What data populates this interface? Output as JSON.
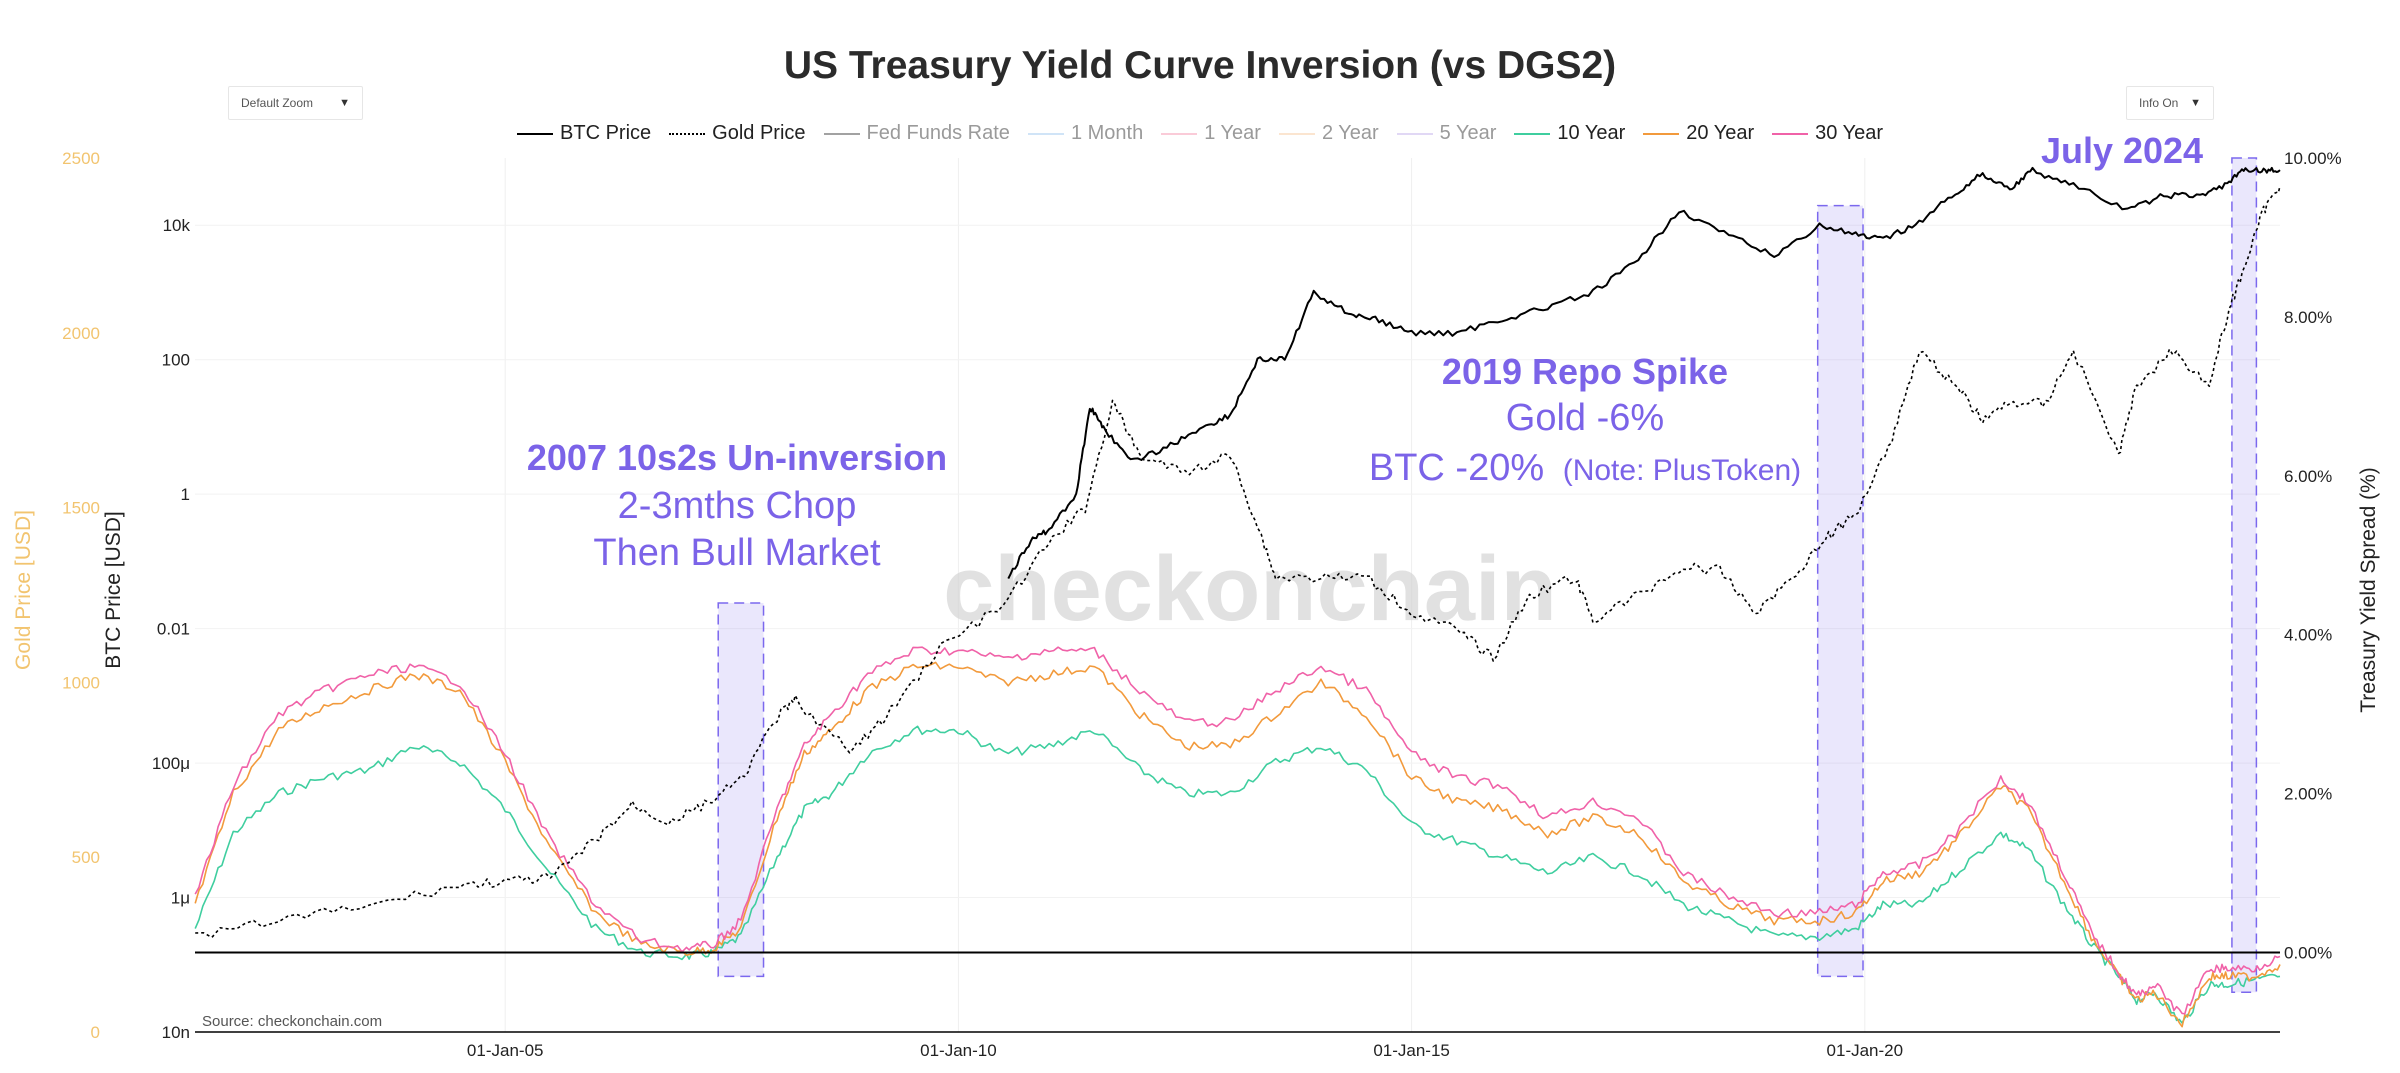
{
  "header": {
    "title": "US Treasury Yield Curve Inversion (vs DGS2)",
    "zoom_select": "Default Zoom",
    "info_select": "Info On"
  },
  "colors": {
    "btc": "#000000",
    "gold": "#000000",
    "fed": "#555555",
    "m1": "#a9cdf0",
    "y1": "#f6a0b8",
    "y2": "#f7cfa9",
    "y5": "#c9b8ec",
    "y10": "#3fce9f",
    "y20": "#f29a3c",
    "y30": "#f062a8",
    "highlight": "#7b68ee",
    "gold_axis": "#f2c46f"
  },
  "chart_data": {
    "type": "line",
    "title": "US Treasury Yield Curve Inversion (vs DGS2)",
    "source": "Source: checkonchain.com",
    "watermark": "checkonchain",
    "x_axis": {
      "range": [
        "2001-07-31",
        "2024-07-31"
      ],
      "ticks": [
        "01-Jan-05",
        "01-Jan-10",
        "01-Jan-15",
        "01-Jan-20"
      ]
    },
    "y_btc": {
      "label": "BTC Price [USD]",
      "scale": "log",
      "range": [
        1e-08,
        100000
      ],
      "ticks": [
        "10n",
        "1μ",
        "100μ",
        "0.01",
        "1",
        "100",
        "10k"
      ]
    },
    "y_gold": {
      "label": "Gold Price [USD]",
      "range": [
        0,
        2500
      ],
      "ticks": [
        "0",
        "500",
        "1000",
        "1500",
        "2000",
        "2500"
      ]
    },
    "y_spread": {
      "label": "Treasury Yield Spread (%)",
      "range": [
        -1.0,
        10.0
      ],
      "ticks": [
        "0.00%",
        "2.00%",
        "4.00%",
        "6.00%",
        "8.00%",
        "10.00%"
      ]
    },
    "legend": [
      {
        "name": "BTC Price",
        "key": "btc",
        "dash": "solid",
        "muted": false
      },
      {
        "name": "Gold Price",
        "key": "gold",
        "dash": "dot",
        "muted": false
      },
      {
        "name": "Fed Funds Rate",
        "key": "fed",
        "dash": "solid",
        "muted": true
      },
      {
        "name": "1 Month",
        "key": "m1",
        "dash": "solid",
        "muted": true
      },
      {
        "name": "1 Year",
        "key": "y1",
        "dash": "solid",
        "muted": true
      },
      {
        "name": "2 Year",
        "key": "y2",
        "dash": "solid",
        "muted": true
      },
      {
        "name": "5 Year",
        "key": "y5",
        "dash": "solid",
        "muted": true
      },
      {
        "name": "10 Year",
        "key": "y10",
        "dash": "solid",
        "muted": false
      },
      {
        "name": "20 Year",
        "key": "y20",
        "dash": "solid",
        "muted": false
      },
      {
        "name": "30 Year",
        "key": "y30",
        "dash": "solid",
        "muted": false
      }
    ],
    "series": [
      {
        "name": "10 Year",
        "key": "y10",
        "axis": "spread",
        "x": [
          2001.58,
          2002.0,
          2002.5,
          2003.0,
          2003.5,
          2004.0,
          2004.5,
          2005.0,
          2005.5,
          2006.0,
          2006.5,
          2007.0,
          2007.3,
          2007.6,
          2008.0,
          2008.3,
          2008.6,
          2009.0,
          2009.5,
          2010.0,
          2010.5,
          2011.0,
          2011.5,
          2012.0,
          2012.5,
          2013.0,
          2013.5,
          2014.0,
          2014.5,
          2015.0,
          2015.5,
          2016.0,
          2016.5,
          2017.0,
          2017.5,
          2018.0,
          2018.5,
          2019.0,
          2019.5,
          2019.9,
          2020.2,
          2020.6,
          2021.0,
          2021.5,
          2021.8,
          2022.2,
          2022.5,
          2022.8,
          2023.0,
          2023.2,
          2023.5,
          2023.8,
          2024.0,
          2024.3,
          2024.58
        ],
        "values": [
          0.3,
          1.5,
          2.0,
          2.2,
          2.3,
          2.6,
          2.4,
          1.8,
          1.0,
          0.3,
          0.0,
          -0.05,
          0.0,
          0.2,
          1.2,
          1.8,
          2.0,
          2.5,
          2.8,
          2.8,
          2.5,
          2.6,
          2.8,
          2.3,
          2.0,
          2.0,
          2.4,
          2.6,
          2.3,
          1.6,
          1.4,
          1.2,
          1.0,
          1.2,
          1.0,
          0.6,
          0.4,
          0.2,
          0.2,
          0.3,
          0.6,
          0.6,
          1.0,
          1.5,
          1.3,
          0.6,
          0.1,
          -0.3,
          -0.6,
          -0.5,
          -0.9,
          -0.4,
          -0.4,
          -0.35,
          -0.3
        ]
      },
      {
        "name": "20 Year",
        "key": "y20",
        "axis": "spread",
        "x": [
          2001.58,
          2002.0,
          2002.5,
          2003.0,
          2003.5,
          2004.0,
          2004.5,
          2005.0,
          2005.5,
          2006.0,
          2006.5,
          2007.0,
          2007.3,
          2007.6,
          2008.0,
          2008.3,
          2008.6,
          2009.0,
          2009.5,
          2010.0,
          2010.5,
          2011.0,
          2011.5,
          2012.0,
          2012.5,
          2013.0,
          2013.5,
          2014.0,
          2014.5,
          2015.0,
          2015.5,
          2016.0,
          2016.5,
          2017.0,
          2017.5,
          2018.0,
          2018.5,
          2019.0,
          2019.5,
          2019.9,
          2020.2,
          2020.6,
          2021.0,
          2021.5,
          2021.8,
          2022.2,
          2022.5,
          2022.8,
          2023.0,
          2023.2,
          2023.5,
          2023.8,
          2024.0,
          2024.3,
          2024.58
        ],
        "values": [
          0.6,
          2.0,
          2.8,
          3.1,
          3.3,
          3.5,
          3.3,
          2.4,
          1.3,
          0.5,
          0.1,
          0.0,
          0.05,
          0.3,
          1.7,
          2.5,
          2.8,
          3.3,
          3.6,
          3.6,
          3.4,
          3.5,
          3.6,
          3.0,
          2.6,
          2.6,
          3.0,
          3.4,
          3.0,
          2.2,
          1.9,
          1.8,
          1.5,
          1.7,
          1.5,
          0.9,
          0.6,
          0.4,
          0.4,
          0.5,
          0.9,
          1.0,
          1.4,
          2.1,
          1.8,
          0.9,
          0.2,
          -0.3,
          -0.6,
          -0.5,
          -0.9,
          -0.3,
          -0.3,
          -0.3,
          -0.15
        ]
      },
      {
        "name": "30 Year",
        "key": "y30",
        "axis": "spread",
        "x": [
          2001.58,
          2002.0,
          2002.5,
          2003.0,
          2003.5,
          2004.0,
          2004.5,
          2005.0,
          2005.5,
          2006.0,
          2006.5,
          2007.0,
          2007.3,
          2007.6,
          2008.0,
          2008.3,
          2008.6,
          2009.0,
          2009.5,
          2010.0,
          2010.5,
          2011.0,
          2011.5,
          2012.0,
          2012.5,
          2013.0,
          2013.5,
          2014.0,
          2014.5,
          2015.0,
          2015.5,
          2016.0,
          2016.5,
          2017.0,
          2017.5,
          2018.0,
          2018.5,
          2019.0,
          2019.5,
          2019.9,
          2020.2,
          2020.6,
          2021.0,
          2021.5,
          2021.8,
          2022.2,
          2022.5,
          2022.8,
          2023.0,
          2023.2,
          2023.5,
          2023.8,
          2024.0,
          2024.3,
          2024.58
        ],
        "values": [
          0.7,
          2.1,
          3.0,
          3.3,
          3.5,
          3.6,
          3.4,
          2.5,
          1.4,
          0.6,
          0.15,
          0.05,
          0.1,
          0.4,
          1.8,
          2.6,
          3.0,
          3.5,
          3.8,
          3.8,
          3.7,
          3.8,
          3.8,
          3.3,
          2.9,
          2.9,
          3.3,
          3.6,
          3.3,
          2.5,
          2.2,
          2.1,
          1.7,
          1.9,
          1.7,
          1.0,
          0.7,
          0.5,
          0.5,
          0.6,
          1.0,
          1.1,
          1.5,
          2.2,
          1.9,
          1.0,
          0.25,
          -0.25,
          -0.55,
          -0.4,
          -0.8,
          -0.2,
          -0.2,
          -0.2,
          -0.05
        ]
      },
      {
        "name": "Gold Price",
        "key": "gold",
        "axis": "gold",
        "dash": "dot",
        "x": [
          2001.58,
          2002.5,
          2003.5,
          2004.5,
          2005.0,
          2005.5,
          2006.0,
          2006.4,
          2006.8,
          2007.2,
          2007.6,
          2008.0,
          2008.2,
          2008.8,
          2009.2,
          2009.8,
          2010.5,
          2011.0,
          2011.4,
          2011.7,
          2012.0,
          2012.5,
          2013.0,
          2013.3,
          2013.5,
          2014.0,
          2014.5,
          2015.0,
          2015.5,
          2015.9,
          2016.3,
          2016.8,
          2017.0,
          2017.5,
          2018.0,
          2018.4,
          2018.8,
          2019.2,
          2019.6,
          2019.9,
          2020.3,
          2020.6,
          2021.0,
          2021.3,
          2021.6,
          2022.0,
          2022.3,
          2022.8,
          2023.0,
          2023.4,
          2023.8,
          2024.0,
          2024.2,
          2024.4,
          2024.58
        ],
        "values": [
          270,
          320,
          360,
          420,
          430,
          440,
          550,
          650,
          600,
          650,
          720,
          900,
          950,
          800,
          900,
          1100,
          1220,
          1400,
          1500,
          1800,
          1650,
          1600,
          1650,
          1450,
          1300,
          1300,
          1300,
          1200,
          1150,
          1070,
          1250,
          1300,
          1180,
          1250,
          1330,
          1320,
          1200,
          1300,
          1420,
          1480,
          1700,
          1950,
          1850,
          1750,
          1800,
          1800,
          1950,
          1650,
          1850,
          1950,
          1850,
          2050,
          2200,
          2350,
          2420
        ]
      },
      {
        "name": "BTC Price",
        "key": "btc",
        "axis": "btc",
        "x": [
          2010.55,
          2010.8,
          2011.0,
          2011.3,
          2011.45,
          2011.6,
          2011.9,
          2012.3,
          2012.7,
          2013.0,
          2013.3,
          2013.6,
          2013.92,
          2014.3,
          2014.6,
          2015.0,
          2015.5,
          2016.0,
          2016.5,
          2017.0,
          2017.5,
          2017.95,
          2018.5,
          2019.0,
          2019.5,
          2019.9,
          2020.2,
          2020.6,
          2021.0,
          2021.3,
          2021.6,
          2021.85,
          2022.3,
          2022.9,
          2023.3,
          2023.7,
          2024.0,
          2024.2,
          2024.4,
          2024.58
        ],
        "values": [
          0.06,
          0.2,
          0.3,
          1.0,
          20,
          10,
          3,
          5,
          10,
          15,
          100,
          100,
          1000,
          500,
          400,
          250,
          250,
          400,
          600,
          1000,
          3000,
          17000,
          7000,
          3500,
          10000,
          7200,
          6000,
          11000,
          30000,
          58000,
          35000,
          65000,
          40000,
          16500,
          28000,
          27000,
          42000,
          68000,
          65000,
          66000
        ]
      }
    ],
    "highlight_regions": [
      {
        "x0": 2007.35,
        "x1": 2007.85,
        "y0": -0.3,
        "y1": 4.4
      },
      {
        "x0": 2019.48,
        "x1": 2019.98,
        "y0": -0.3,
        "y1": 9.4
      },
      {
        "x0": 2024.05,
        "x1": 2024.32,
        "y0": -0.5,
        "y1": 10.0
      }
    ],
    "annotations": {
      "a2007": {
        "title": "2007 10s2s Un-inversion",
        "line2": "2-3mths Chop",
        "line3": "Then Bull Market"
      },
      "a2019": {
        "title": "2019 Repo Spike",
        "line2": "Gold -6%",
        "line3": "BTC -20%",
        "note": "(Note: PlusToken)"
      },
      "a2024": {
        "title": "July 2024"
      }
    }
  }
}
